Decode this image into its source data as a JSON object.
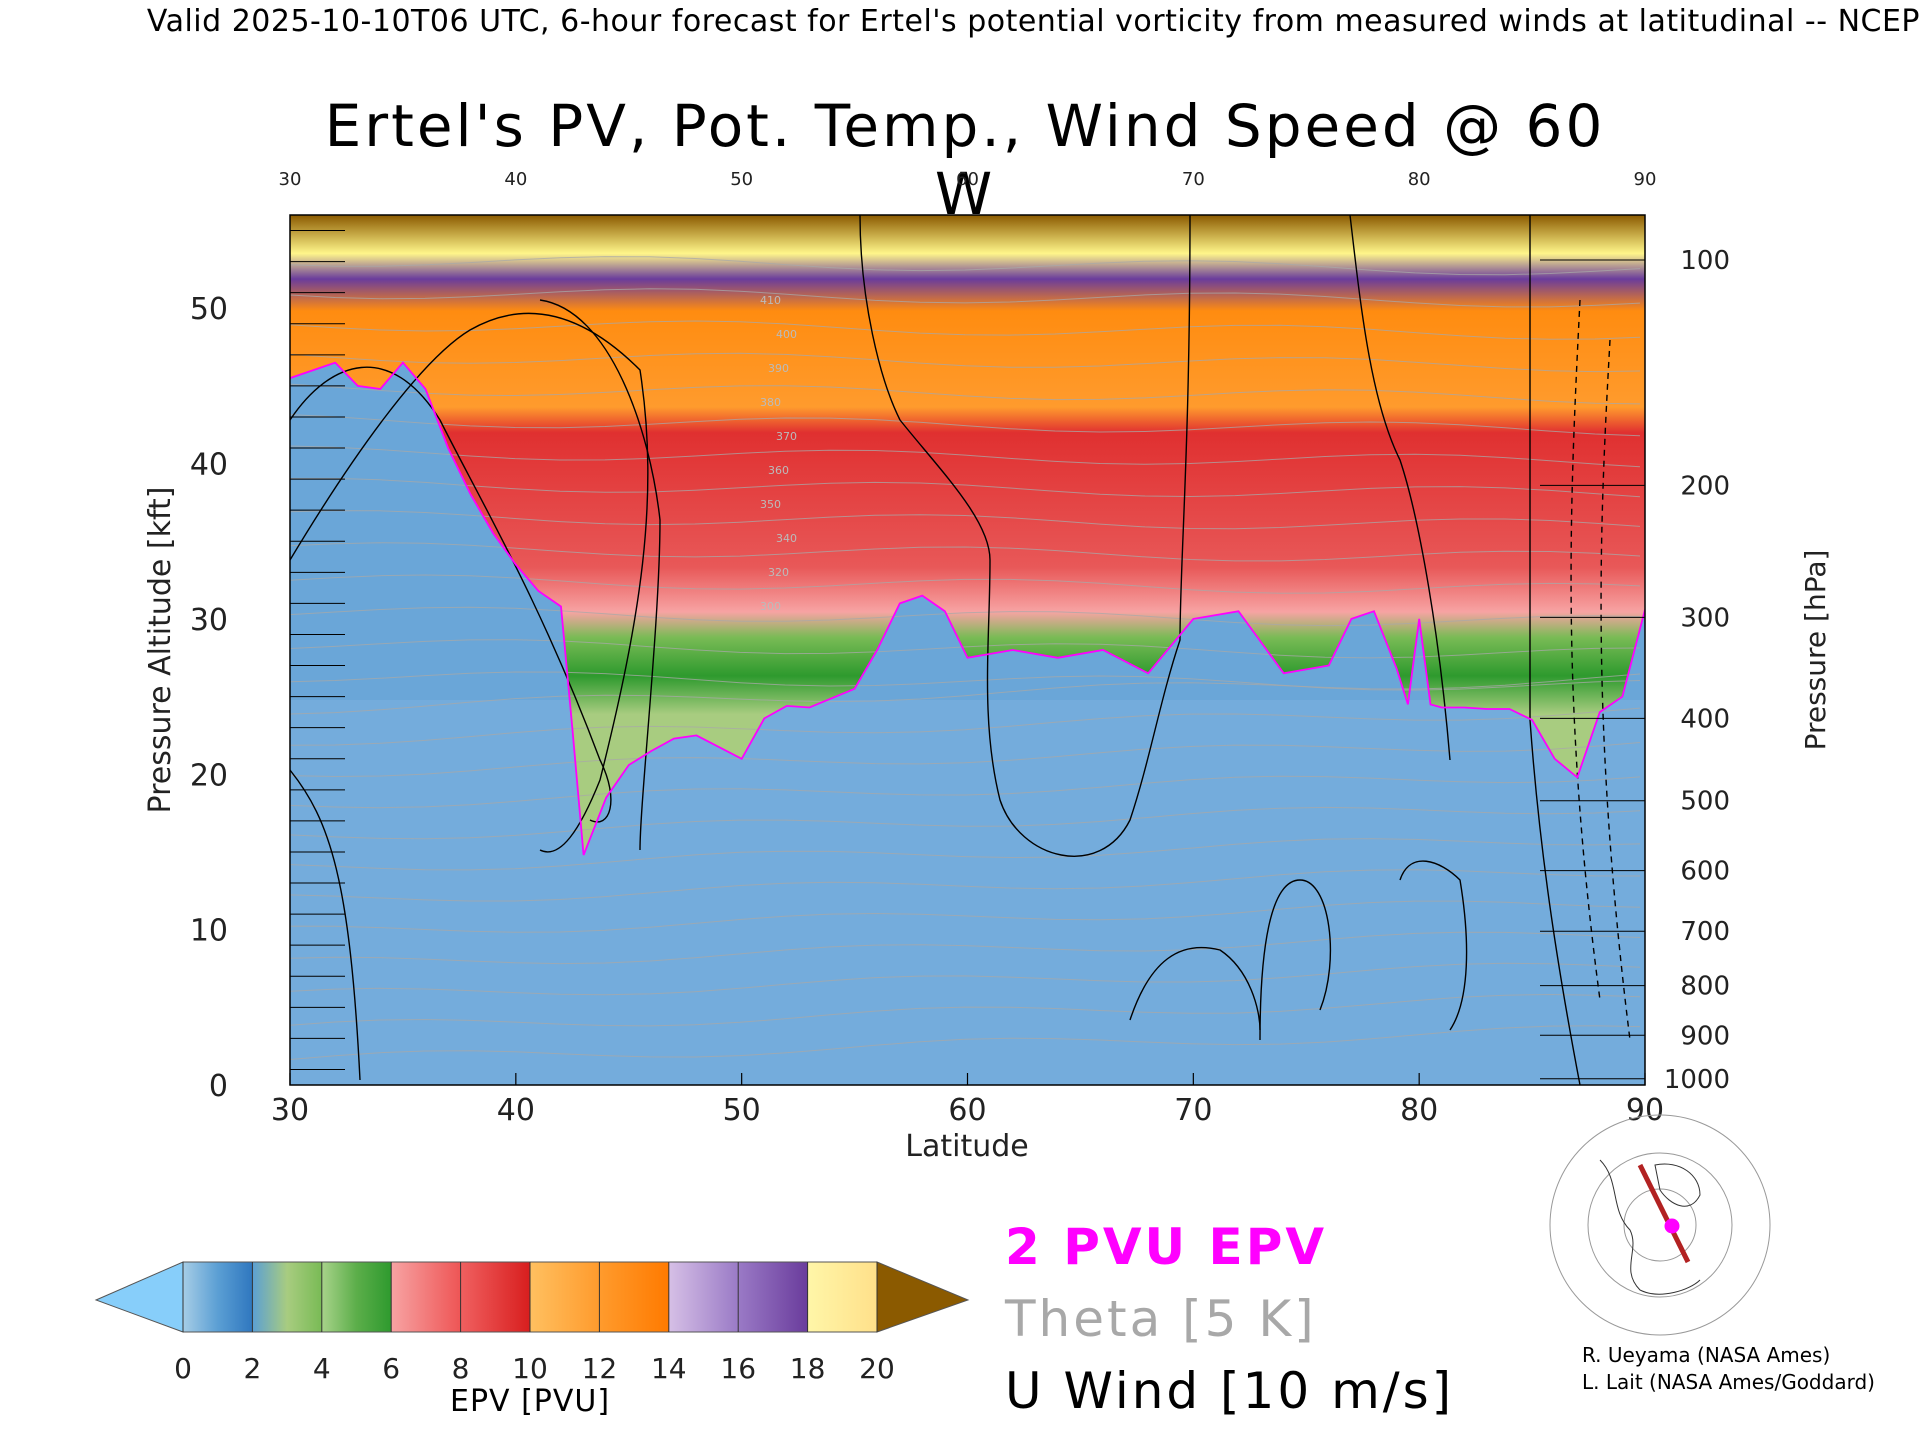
{
  "header": "Valid 2025-10-10T06 UTC, 6-hour forecast for Ertel's potential vorticity from measured winds at latitudinal -- NCEP",
  "colors": {
    "pv_contour": "#ff00ff",
    "theta_contour": "#a8a8a8",
    "wind_contour": "#000000",
    "pv_scale": [
      "#87cefa",
      "#5b9fd4",
      "#2f77bf",
      "#a8cc80",
      "#79bb55",
      "#2e9a2e",
      "#f7a3a3",
      "#ee5555",
      "#d81e1e",
      "#ffc060",
      "#ff9b2d",
      "#ff7a00",
      "#c6a6dc",
      "#9a7ac6",
      "#6a3c9c",
      "#fff68a",
      "#ffe08a",
      "#8b5a00"
    ]
  },
  "chart_data": {
    "type": "heatmap",
    "title": "Ertel's PV, Pot. Temp., Wind Speed @ 60 W",
    "xlabel": "Latitude",
    "ylabel": "Pressure Altitude [kft]",
    "ylabel_right": "Pressure [hPa]",
    "xlim": [
      30,
      90
    ],
    "ylim": [
      0,
      56
    ],
    "x_ticks": [
      30,
      40,
      50,
      60,
      70,
      80,
      90
    ],
    "x_tick_labels": [
      "30",
      "40",
      "50",
      "60",
      "70",
      "80",
      "90"
    ],
    "y_ticks": [
      0,
      10,
      20,
      30,
      40,
      50
    ],
    "y_tick_labels": [
      "0",
      "10",
      "20",
      "30",
      "40",
      "50"
    ],
    "pressure_ticks": [
      {
        "label": "100",
        "kft": 53.1
      },
      {
        "label": "200",
        "kft": 38.6
      },
      {
        "label": "300",
        "kft": 30.1
      },
      {
        "label": "400",
        "kft": 23.6
      },
      {
        "label": "500",
        "kft": 18.3
      },
      {
        "label": "600",
        "kft": 13.8
      },
      {
        "label": "700",
        "kft": 9.9
      },
      {
        "label": "800",
        "kft": 6.4
      },
      {
        "label": "900",
        "kft": 3.2
      },
      {
        "label": "1000",
        "kft": 0.4
      }
    ],
    "tropopause_2pvu": {
      "name": "2 PVU EPV",
      "lat": [
        30,
        31,
        32,
        33,
        34,
        35,
        36,
        37,
        38,
        39,
        40,
        41,
        42,
        42.5,
        43,
        44,
        45,
        46,
        47,
        48,
        50,
        51,
        52,
        53,
        55,
        56,
        57,
        58,
        59,
        60,
        62,
        64,
        66,
        68,
        70,
        72,
        74,
        76,
        77,
        78,
        79,
        79.5,
        80,
        80.5,
        81,
        82,
        83,
        84,
        85,
        86,
        87,
        88,
        89,
        90
      ],
      "kft": [
        45.5,
        46,
        46.5,
        45,
        44.8,
        46.5,
        44.8,
        41,
        38,
        35.5,
        33.5,
        31.8,
        30.8,
        23,
        14.8,
        18.5,
        20.6,
        21.5,
        22.3,
        22.5,
        21,
        23.6,
        24.4,
        24.3,
        25.5,
        28,
        31,
        31.5,
        30.5,
        27.5,
        28,
        27.5,
        28,
        26.5,
        30,
        30.5,
        26.5,
        27,
        30,
        30.5,
        26.8,
        24.5,
        30,
        24.5,
        24.3,
        24.3,
        24.2,
        24.2,
        23.5,
        21,
        19.8,
        24,
        25,
        30.6
      ]
    },
    "theta_contours": {
      "name": "Theta [5 K]",
      "label_values": [
        300,
        320,
        340,
        350,
        360,
        370,
        380,
        390,
        400,
        410
      ]
    },
    "wind_contours": {
      "name": "U Wind [10 m/s]",
      "label_values": [
        0,
        10,
        30
      ]
    },
    "colorbar": {
      "label": "EPV [PVU]",
      "ticks": [
        "0",
        "2",
        "4",
        "6",
        "8",
        "10",
        "12",
        "14",
        "16",
        "18",
        "20"
      ],
      "range": [
        0,
        20
      ]
    }
  },
  "legend": {
    "pv": "2 PVU EPV",
    "theta": "Theta [5 K]",
    "wind": "U Wind [10 m/s]"
  },
  "credits": {
    "line1": "R. Ueyama (NASA Ames)",
    "line2": "L. Lait (NASA Ames/Goddard)"
  }
}
